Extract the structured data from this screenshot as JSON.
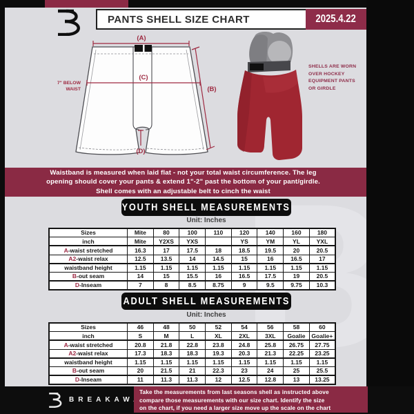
{
  "header": {
    "title": "PANTS SHELL SIZE CHART",
    "date": "2025.4.22"
  },
  "diagram": {
    "label_a": "(A)",
    "label_b": "(B)",
    "label_c": "(C)",
    "label_d": "(D)",
    "waist_note_line1": "7\" BELOW",
    "waist_note_line2": "WAIST"
  },
  "photo": {
    "note_lines": [
      "SHELLS ARE WORN",
      "OVER HOCKEY",
      "EQUIPMENT PANTS",
      "OR GIRDLE"
    ]
  },
  "banner": {
    "lines": [
      "Waistband is measured when laid flat - not your total waist circumference. The leg",
      "opening should cover your pants & extend 1\"-2\" past the bottom of your pant/girdle.",
      "Shell comes with an adjustable belt to cinch the waist"
    ]
  },
  "youth": {
    "heading": "YOUTH SHELL MEASUREMENTS",
    "unit": "Unit: Inches",
    "rows": [
      {
        "prefix": "",
        "label": "Sizes",
        "values": [
          "Mite",
          "80",
          "100",
          "110",
          "120",
          "140",
          "160",
          "180"
        ]
      },
      {
        "prefix": "",
        "label": "inch",
        "values": [
          "Mite",
          "Y2XS",
          "YXS",
          "",
          "YS",
          "YM",
          "YL",
          "YXL"
        ]
      },
      {
        "prefix": "A",
        "label": "-waist stretched",
        "values": [
          "16.3",
          "17",
          "17.5",
          "18",
          "18.5",
          "19.5",
          "20",
          "20.5"
        ]
      },
      {
        "prefix": "A2",
        "label": "-waist relax",
        "values": [
          "12.5",
          "13.5",
          "14",
          "14.5",
          "15",
          "16",
          "16.5",
          "17"
        ]
      },
      {
        "prefix": "",
        "label": "waistband height",
        "values": [
          "1.15",
          "1.15",
          "1.15",
          "1.15",
          "1.15",
          "1.15",
          "1.15",
          "1.15"
        ]
      },
      {
        "prefix": "B",
        "label": "-out seam",
        "values": [
          "14",
          "15",
          "15.5",
          "16",
          "16.5",
          "17.5",
          "19",
          "20.5"
        ]
      },
      {
        "prefix": "D",
        "label": "-Inseam",
        "values": [
          "7",
          "8",
          "8.5",
          "8.75",
          "9",
          "9.5",
          "9.75",
          "10.3"
        ]
      }
    ]
  },
  "adult": {
    "heading": "ADULT SHELL MEASUREMENTS",
    "unit": "Unit: Inches",
    "rows": [
      {
        "prefix": "",
        "label": "Sizes",
        "values": [
          "46",
          "48",
          "50",
          "52",
          "54",
          "56",
          "58",
          "60"
        ]
      },
      {
        "prefix": "",
        "label": "inch",
        "values": [
          "S",
          "M",
          "L",
          "XL",
          "2XL",
          "3XL",
          "Goalie",
          "Goalie+"
        ]
      },
      {
        "prefix": "A",
        "label": "-waist stretched",
        "values": [
          "20.8",
          "21.8",
          "22.8",
          "23.8",
          "24.8",
          "25.8",
          "26.75",
          "27.75"
        ]
      },
      {
        "prefix": "A2",
        "label": "-waist relax",
        "values": [
          "17.3",
          "18.3",
          "18.3",
          "19.3",
          "20.3",
          "21.3",
          "22.25",
          "23.25"
        ]
      },
      {
        "prefix": "",
        "label": "waistband height",
        "values": [
          "1.15",
          "1.15",
          "1.15",
          "1.15",
          "1.15",
          "1.15",
          "1.15",
          "1.15"
        ]
      },
      {
        "prefix": "B",
        "label": "-out seam",
        "values": [
          "20",
          "21.5",
          "21",
          "22.3",
          "23",
          "24",
          "25",
          "25.5"
        ]
      },
      {
        "prefix": "D",
        "label": "-Inseam",
        "values": [
          "11",
          "11.3",
          "11.3",
          "12",
          "12.5",
          "12.8",
          "13",
          "13.25"
        ]
      }
    ]
  },
  "footer": {
    "brand": "BREAKAWAY",
    "note_lines": [
      "Take the measurements from last seasons shell as instructed above",
      "compare those measurements  with our size chart. Identify the size",
      "on the chart, if you need a larger size move up the scale on the chart"
    ]
  },
  "watermark_letter": "B",
  "colors": {
    "maroon": "#8a2a44",
    "accent_red": "#9e2a41",
    "black": "#0c0c0c",
    "page_gray": "#dcdce0",
    "shell_red": "#a02631"
  }
}
